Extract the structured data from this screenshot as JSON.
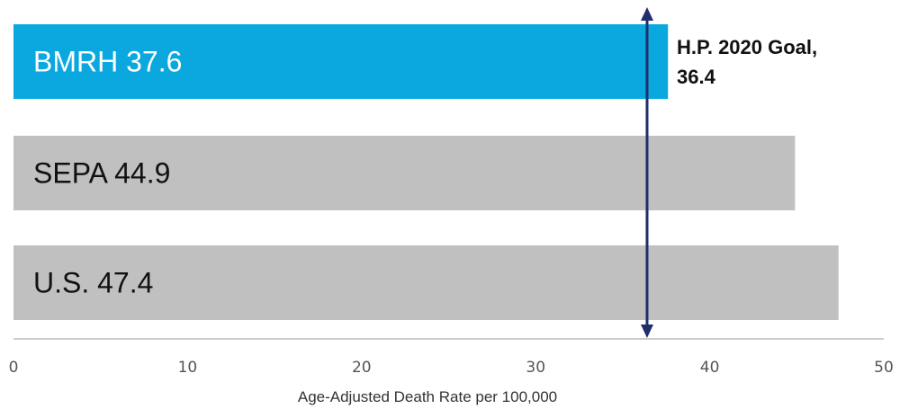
{
  "chart_data": {
    "type": "bar",
    "orientation": "horizontal",
    "categories": [
      "BMRH",
      "SEPA",
      "U.S."
    ],
    "values": [
      37.6,
      44.9,
      47.4
    ],
    "bar_labels": [
      "BMRH 37.6",
      "SEPA 44.9",
      "U.S. 47.4"
    ],
    "bar_colors": [
      "#0aa8df",
      "#c0c0c0",
      "#c0c0c0"
    ],
    "label_colors": [
      "#ffffff",
      "#111111",
      "#111111"
    ],
    "xlabel": "Age-Adjusted Death Rate per 100,000",
    "xlim": [
      0,
      50
    ],
    "xticks": [
      0,
      10,
      20,
      30,
      40,
      50
    ],
    "xtick_labels": [
      "0",
      "10",
      "20",
      "30",
      "40",
      "50"
    ],
    "grid": false,
    "reference_line": {
      "value": 36.4,
      "label_lines": [
        "H.P. 2020 Goal,",
        "36.4"
      ],
      "color": "#1f2f6e"
    }
  }
}
